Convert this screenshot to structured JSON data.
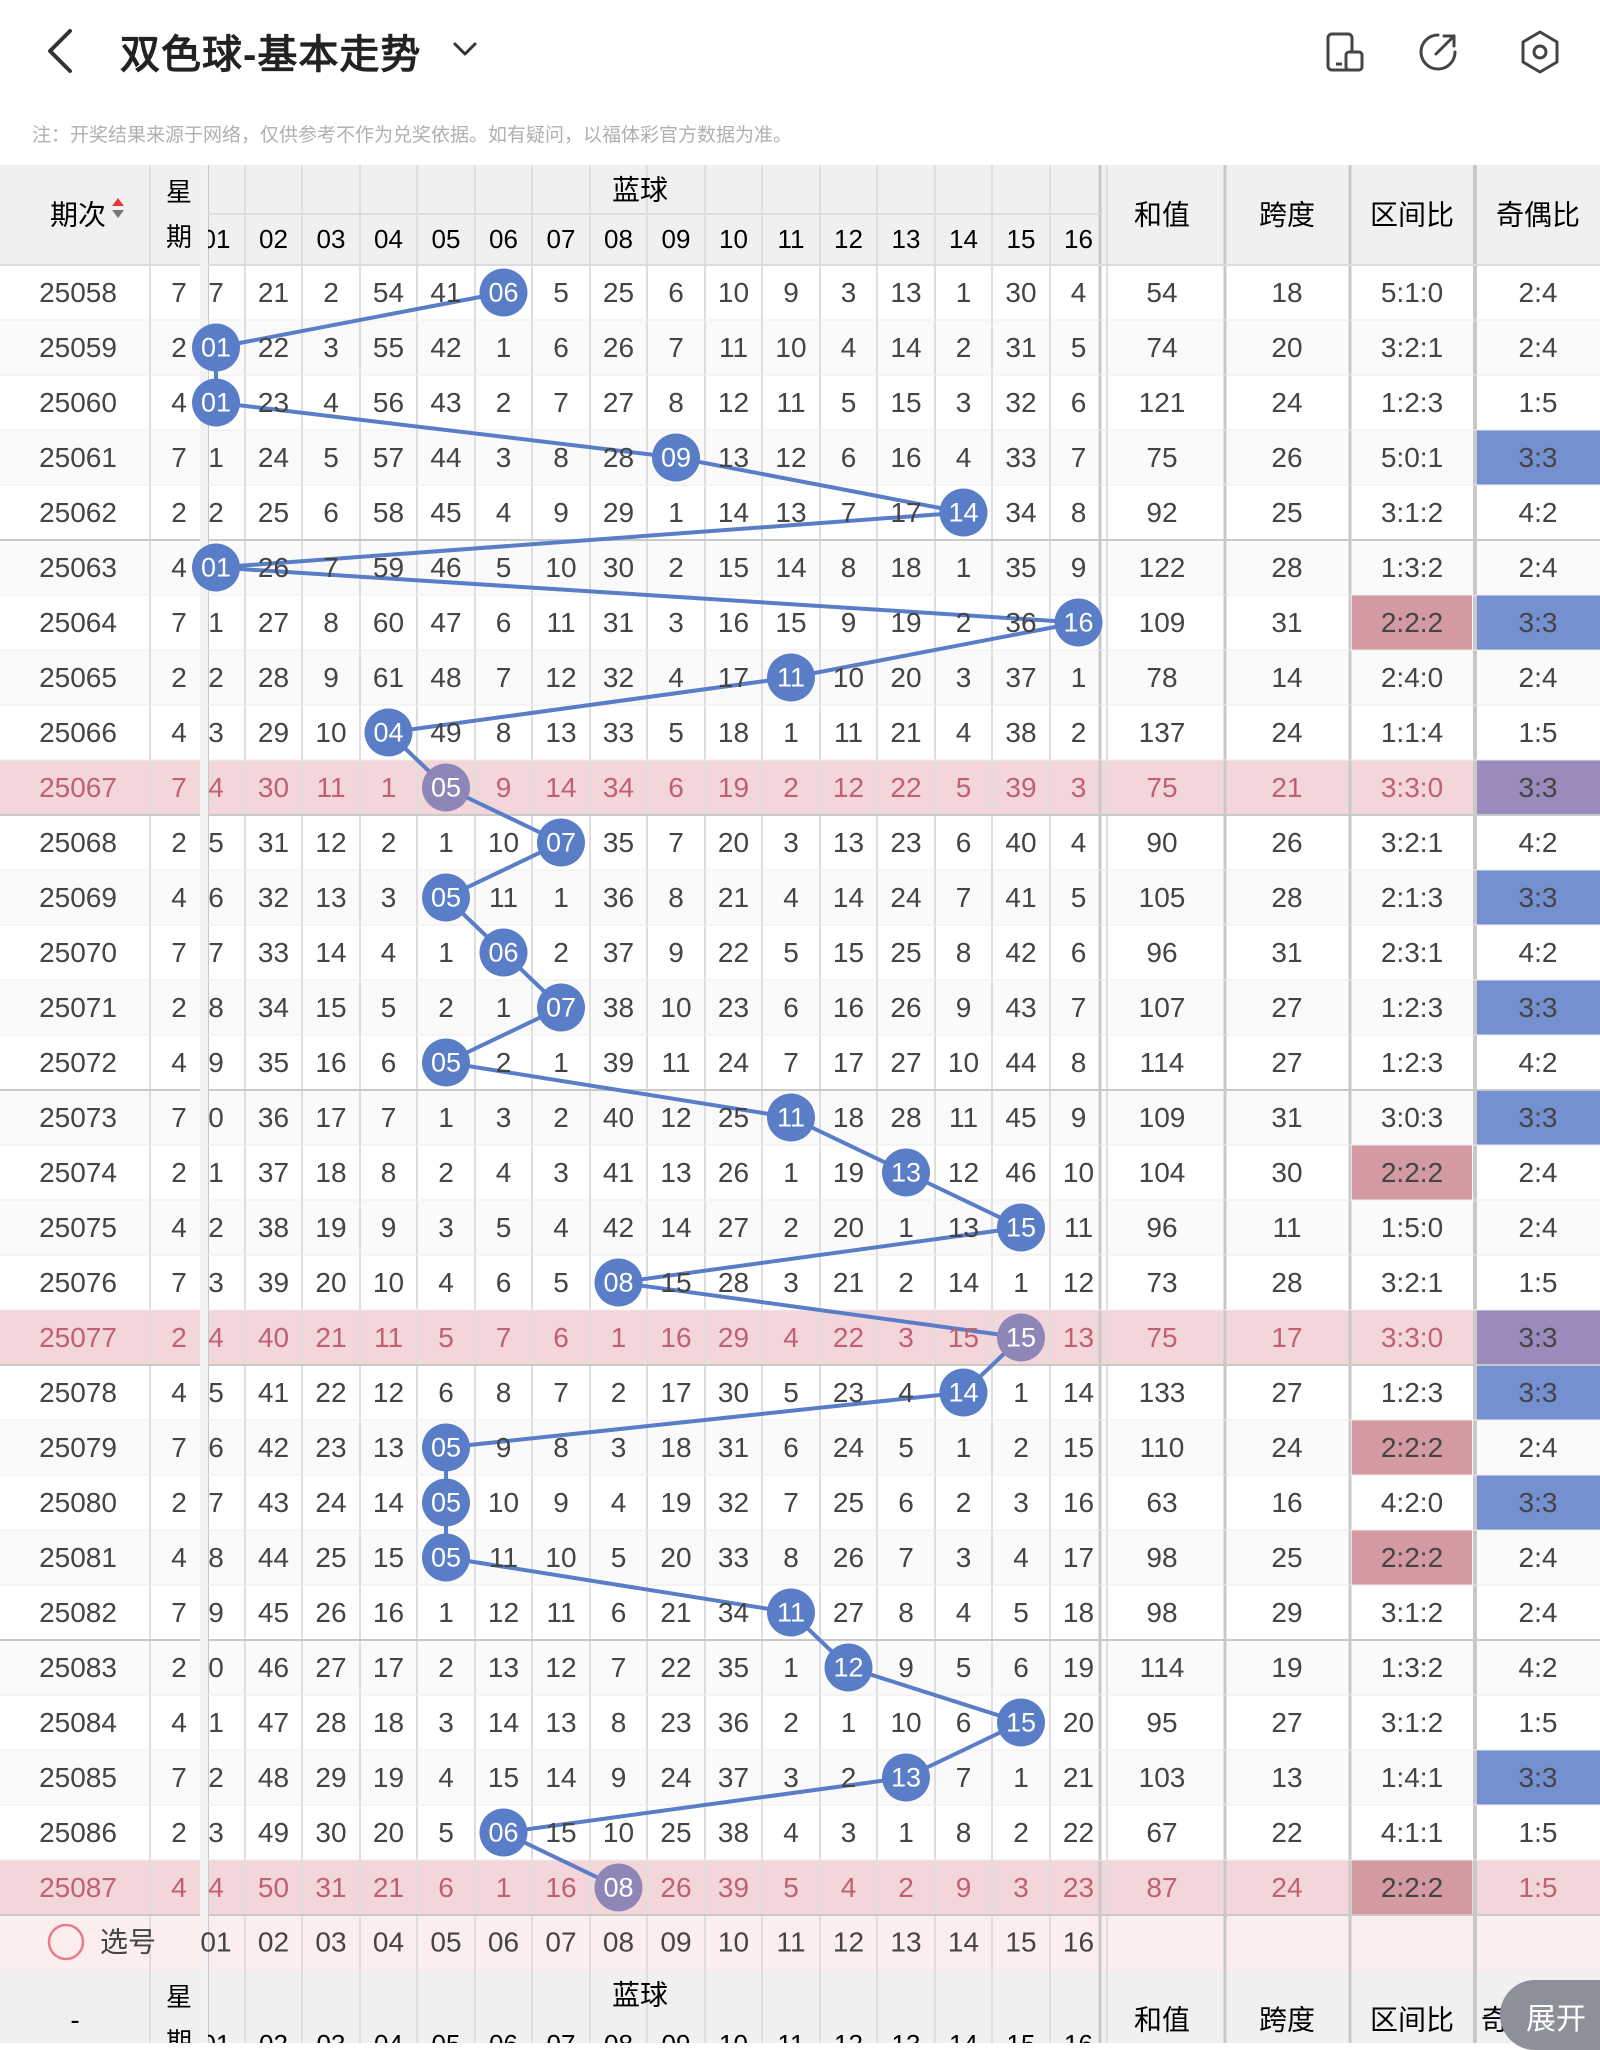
{
  "header": {
    "title": "双色球-基本走势",
    "note": "注：开奖结果来源于网络，仅供参考不作为兑奖依据。如有疑问，以福体彩官方数据为准。",
    "icons": [
      "back-arrow-icon",
      "chevron-down-icon",
      "device-icon",
      "share-icon",
      "settings-icon"
    ]
  },
  "table": {
    "col_period": "期次",
    "col_week_1": "星",
    "col_week_2": "期",
    "group_blue": "蓝球",
    "col_sum": "和值",
    "col_span": "跨度",
    "col_zone": "区间比",
    "col_odd": "奇偶比",
    "blue_numbers": [
      "01",
      "02",
      "03",
      "04",
      "05",
      "06",
      "07",
      "08",
      "09",
      "10",
      "11",
      "12",
      "13",
      "14",
      "15",
      "16"
    ],
    "select_label": "选号",
    "footer_dash": "-",
    "footer_odd_partial": "奇",
    "rows": [
      {
        "p": "25058",
        "w": "7",
        "c1": "7",
        "cells": [
          "21",
          "2",
          "54",
          "41",
          "06",
          "5",
          "25",
          "6",
          "10",
          "9",
          "3",
          "13",
          "1",
          "30",
          "4"
        ],
        "blue": 6,
        "sum": "54",
        "span": "18",
        "zone": "5:1:0",
        "odd": "2:4",
        "hl": false,
        "zoneHl": false,
        "oddHl": false
      },
      {
        "p": "25059",
        "w": "2",
        "c1": "01",
        "cells": [
          "22",
          "3",
          "55",
          "42",
          "1",
          "6",
          "26",
          "7",
          "11",
          "10",
          "4",
          "14",
          "2",
          "31",
          "5"
        ],
        "blue": 1,
        "sum": "74",
        "span": "20",
        "zone": "3:2:1",
        "odd": "2:4",
        "hl": false,
        "zoneHl": false,
        "oddHl": false
      },
      {
        "p": "25060",
        "w": "4",
        "c1": "01",
        "cells": [
          "23",
          "4",
          "56",
          "43",
          "2",
          "7",
          "27",
          "8",
          "12",
          "11",
          "5",
          "15",
          "3",
          "32",
          "6"
        ],
        "blue": 1,
        "sum": "121",
        "span": "24",
        "zone": "1:2:3",
        "odd": "1:5",
        "hl": false,
        "zoneHl": false,
        "oddHl": false
      },
      {
        "p": "25061",
        "w": "7",
        "c1": "1",
        "cells": [
          "24",
          "5",
          "57",
          "44",
          "3",
          "8",
          "28",
          "09",
          "13",
          "12",
          "6",
          "16",
          "4",
          "33",
          "7"
        ],
        "blue": 9,
        "sum": "75",
        "span": "26",
        "zone": "5:0:1",
        "odd": "3:3",
        "hl": false,
        "zoneHl": false,
        "oddHl": true
      },
      {
        "p": "25062",
        "w": "2",
        "c1": "2",
        "cells": [
          "25",
          "6",
          "58",
          "45",
          "4",
          "9",
          "29",
          "1",
          "14",
          "13",
          "7",
          "17",
          "14",
          "34",
          "8"
        ],
        "blue": 14,
        "sum": "92",
        "span": "25",
        "zone": "3:1:2",
        "odd": "4:2",
        "hl": false,
        "zoneHl": false,
        "oddHl": false
      },
      {
        "p": "25063",
        "w": "4",
        "c1": "01",
        "cells": [
          "26",
          "7",
          "59",
          "46",
          "5",
          "10",
          "30",
          "2",
          "15",
          "14",
          "8",
          "18",
          "1",
          "35",
          "9"
        ],
        "blue": 1,
        "sum": "122",
        "span": "28",
        "zone": "1:3:2",
        "odd": "2:4",
        "hl": false,
        "zoneHl": false,
        "oddHl": false
      },
      {
        "p": "25064",
        "w": "7",
        "c1": "1",
        "cells": [
          "27",
          "8",
          "60",
          "47",
          "6",
          "11",
          "31",
          "3",
          "16",
          "15",
          "9",
          "19",
          "2",
          "36",
          "16"
        ],
        "blue": 16,
        "sum": "109",
        "span": "31",
        "zone": "2:2:2",
        "odd": "3:3",
        "hl": false,
        "zoneHl": true,
        "oddHl": true
      },
      {
        "p": "25065",
        "w": "2",
        "c1": "2",
        "cells": [
          "28",
          "9",
          "61",
          "48",
          "7",
          "12",
          "32",
          "4",
          "17",
          "11",
          "10",
          "20",
          "3",
          "37",
          "1"
        ],
        "blue": 11,
        "sum": "78",
        "span": "14",
        "zone": "2:4:0",
        "odd": "2:4",
        "hl": false,
        "zoneHl": false,
        "oddHl": false
      },
      {
        "p": "25066",
        "w": "4",
        "c1": "3",
        "cells": [
          "29",
          "10",
          "04",
          "49",
          "8",
          "13",
          "33",
          "5",
          "18",
          "1",
          "11",
          "21",
          "4",
          "38",
          "2"
        ],
        "blue": 4,
        "sum": "137",
        "span": "24",
        "zone": "1:1:4",
        "odd": "1:5",
        "hl": false,
        "zoneHl": false,
        "oddHl": false
      },
      {
        "p": "25067",
        "w": "7",
        "c1": "4",
        "cells": [
          "30",
          "11",
          "1",
          "05",
          "9",
          "14",
          "34",
          "6",
          "19",
          "2",
          "12",
          "22",
          "5",
          "39",
          "3"
        ],
        "blue": 5,
        "sum": "75",
        "span": "21",
        "zone": "3:3:0",
        "odd": "3:3",
        "hl": true,
        "zoneHl": false,
        "oddHl": true
      },
      {
        "p": "25068",
        "w": "2",
        "c1": "5",
        "cells": [
          "31",
          "12",
          "2",
          "1",
          "10",
          "07",
          "35",
          "7",
          "20",
          "3",
          "13",
          "23",
          "6",
          "40",
          "4"
        ],
        "blue": 7,
        "sum": "90",
        "span": "26",
        "zone": "3:2:1",
        "odd": "4:2",
        "hl": false,
        "zoneHl": false,
        "oddHl": false
      },
      {
        "p": "25069",
        "w": "4",
        "c1": "6",
        "cells": [
          "32",
          "13",
          "3",
          "05",
          "11",
          "1",
          "36",
          "8",
          "21",
          "4",
          "14",
          "24",
          "7",
          "41",
          "5"
        ],
        "blue": 5,
        "sum": "105",
        "span": "28",
        "zone": "2:1:3",
        "odd": "3:3",
        "hl": false,
        "zoneHl": false,
        "oddHl": true
      },
      {
        "p": "25070",
        "w": "7",
        "c1": "7",
        "cells": [
          "33",
          "14",
          "4",
          "1",
          "06",
          "2",
          "37",
          "9",
          "22",
          "5",
          "15",
          "25",
          "8",
          "42",
          "6"
        ],
        "blue": 6,
        "sum": "96",
        "span": "31",
        "zone": "2:3:1",
        "odd": "4:2",
        "hl": false,
        "zoneHl": false,
        "oddHl": false
      },
      {
        "p": "25071",
        "w": "2",
        "c1": "8",
        "cells": [
          "34",
          "15",
          "5",
          "2",
          "1",
          "07",
          "38",
          "10",
          "23",
          "6",
          "16",
          "26",
          "9",
          "43",
          "7"
        ],
        "blue": 7,
        "sum": "107",
        "span": "27",
        "zone": "1:2:3",
        "odd": "3:3",
        "hl": false,
        "zoneHl": false,
        "oddHl": true
      },
      {
        "p": "25072",
        "w": "4",
        "c1": "9",
        "cells": [
          "35",
          "16",
          "6",
          "05",
          "2",
          "1",
          "39",
          "11",
          "24",
          "7",
          "17",
          "27",
          "10",
          "44",
          "8"
        ],
        "blue": 5,
        "sum": "114",
        "span": "27",
        "zone": "1:2:3",
        "odd": "4:2",
        "hl": false,
        "zoneHl": false,
        "oddHl": false
      },
      {
        "p": "25073",
        "w": "7",
        "c1": "0",
        "cells": [
          "36",
          "17",
          "7",
          "1",
          "3",
          "2",
          "40",
          "12",
          "25",
          "11",
          "18",
          "28",
          "11",
          "45",
          "9"
        ],
        "blue": 11,
        "sum": "109",
        "span": "31",
        "zone": "3:0:3",
        "odd": "3:3",
        "hl": false,
        "zoneHl": false,
        "oddHl": true
      },
      {
        "p": "25074",
        "w": "2",
        "c1": "1",
        "cells": [
          "37",
          "18",
          "8",
          "2",
          "4",
          "3",
          "41",
          "13",
          "26",
          "1",
          "19",
          "13",
          "12",
          "46",
          "10"
        ],
        "blue": 13,
        "sum": "104",
        "span": "30",
        "zone": "2:2:2",
        "odd": "2:4",
        "hl": false,
        "zoneHl": true,
        "oddHl": false
      },
      {
        "p": "25075",
        "w": "4",
        "c1": "2",
        "cells": [
          "38",
          "19",
          "9",
          "3",
          "5",
          "4",
          "42",
          "14",
          "27",
          "2",
          "20",
          "1",
          "13",
          "15",
          "11"
        ],
        "blue": 15,
        "sum": "96",
        "span": "11",
        "zone": "1:5:0",
        "odd": "2:4",
        "hl": false,
        "zoneHl": false,
        "oddHl": false
      },
      {
        "p": "25076",
        "w": "7",
        "c1": "3",
        "cells": [
          "39",
          "20",
          "10",
          "4",
          "6",
          "5",
          "08",
          "15",
          "28",
          "3",
          "21",
          "2",
          "14",
          "1",
          "12"
        ],
        "blue": 8,
        "sum": "73",
        "span": "28",
        "zone": "3:2:1",
        "odd": "1:5",
        "hl": false,
        "zoneHl": false,
        "oddHl": false
      },
      {
        "p": "25077",
        "w": "2",
        "c1": "4",
        "cells": [
          "40",
          "21",
          "11",
          "5",
          "7",
          "6",
          "1",
          "16",
          "29",
          "4",
          "22",
          "3",
          "15",
          "15",
          "13"
        ],
        "blue": 15,
        "sum": "75",
        "span": "17",
        "zone": "3:3:0",
        "odd": "3:3",
        "hl": true,
        "zoneHl": false,
        "oddHl": true
      },
      {
        "p": "25078",
        "w": "4",
        "c1": "5",
        "cells": [
          "41",
          "22",
          "12",
          "6",
          "8",
          "7",
          "2",
          "17",
          "30",
          "5",
          "23",
          "4",
          "14",
          "1",
          "14"
        ],
        "blue": 14,
        "sum": "133",
        "span": "27",
        "zone": "1:2:3",
        "odd": "3:3",
        "hl": false,
        "zoneHl": false,
        "oddHl": true
      },
      {
        "p": "25079",
        "w": "7",
        "c1": "6",
        "cells": [
          "42",
          "23",
          "13",
          "05",
          "9",
          "8",
          "3",
          "18",
          "31",
          "6",
          "24",
          "5",
          "1",
          "2",
          "15"
        ],
        "blue": 5,
        "sum": "110",
        "span": "24",
        "zone": "2:2:2",
        "odd": "2:4",
        "hl": false,
        "zoneHl": true,
        "oddHl": false
      },
      {
        "p": "25080",
        "w": "2",
        "c1": "7",
        "cells": [
          "43",
          "24",
          "14",
          "05",
          "10",
          "9",
          "4",
          "19",
          "32",
          "7",
          "25",
          "6",
          "2",
          "3",
          "16"
        ],
        "blue": 5,
        "sum": "63",
        "span": "16",
        "zone": "4:2:0",
        "odd": "3:3",
        "hl": false,
        "zoneHl": false,
        "oddHl": true
      },
      {
        "p": "25081",
        "w": "4",
        "c1": "8",
        "cells": [
          "44",
          "25",
          "15",
          "05",
          "11",
          "10",
          "5",
          "20",
          "33",
          "8",
          "26",
          "7",
          "3",
          "4",
          "17"
        ],
        "blue": 5,
        "sum": "98",
        "span": "25",
        "zone": "2:2:2",
        "odd": "2:4",
        "hl": false,
        "zoneHl": true,
        "oddHl": false
      },
      {
        "p": "25082",
        "w": "7",
        "c1": "9",
        "cells": [
          "45",
          "26",
          "16",
          "1",
          "12",
          "11",
          "6",
          "21",
          "34",
          "11",
          "27",
          "8",
          "4",
          "5",
          "18"
        ],
        "blue": 11,
        "sum": "98",
        "span": "29",
        "zone": "3:1:2",
        "odd": "2:4",
        "hl": false,
        "zoneHl": false,
        "oddHl": false
      },
      {
        "p": "25083",
        "w": "2",
        "c1": "0",
        "cells": [
          "46",
          "27",
          "17",
          "2",
          "13",
          "12",
          "7",
          "22",
          "35",
          "1",
          "12",
          "9",
          "5",
          "6",
          "19"
        ],
        "blue": 12,
        "sum": "114",
        "span": "19",
        "zone": "1:3:2",
        "odd": "4:2",
        "hl": false,
        "zoneHl": false,
        "oddHl": false
      },
      {
        "p": "25084",
        "w": "4",
        "c1": "1",
        "cells": [
          "47",
          "28",
          "18",
          "3",
          "14",
          "13",
          "8",
          "23",
          "36",
          "2",
          "1",
          "10",
          "6",
          "15",
          "20"
        ],
        "blue": 15,
        "sum": "95",
        "span": "27",
        "zone": "3:1:2",
        "odd": "1:5",
        "hl": false,
        "zoneHl": false,
        "oddHl": false
      },
      {
        "p": "25085",
        "w": "7",
        "c1": "2",
        "cells": [
          "48",
          "29",
          "19",
          "4",
          "15",
          "14",
          "9",
          "24",
          "37",
          "3",
          "2",
          "13",
          "7",
          "1",
          "21"
        ],
        "blue": 13,
        "sum": "103",
        "span": "13",
        "zone": "1:4:1",
        "odd": "3:3",
        "hl": false,
        "zoneHl": false,
        "oddHl": true
      },
      {
        "p": "25086",
        "w": "2",
        "c1": "3",
        "cells": [
          "49",
          "30",
          "20",
          "5",
          "06",
          "15",
          "10",
          "25",
          "38",
          "4",
          "3",
          "1",
          "8",
          "2",
          "22"
        ],
        "blue": 6,
        "sum": "67",
        "span": "22",
        "zone": "4:1:1",
        "odd": "1:5",
        "hl": false,
        "zoneHl": false,
        "oddHl": false
      },
      {
        "p": "25087",
        "w": "4",
        "c1": "4",
        "cells": [
          "50",
          "31",
          "21",
          "6",
          "1",
          "16",
          "08",
          "26",
          "39",
          "5",
          "4",
          "2",
          "9",
          "3",
          "23"
        ],
        "blue": 8,
        "sum": "87",
        "span": "24",
        "zone": "2:2:2",
        "odd": "1:5",
        "hl": true,
        "zoneHl": true,
        "oddHl": false
      }
    ]
  },
  "colors": {
    "ball": "#5a7dc7",
    "ball_highlight": "#8f86b8",
    "row_highlight": "#f3d6da",
    "zone_highlight": "#d39ba1",
    "odd_highlight": "#7590d0",
    "odd_highlight_row": "#9b8bbd",
    "select_text": "#e87b8a"
  },
  "expand_label": "展开"
}
